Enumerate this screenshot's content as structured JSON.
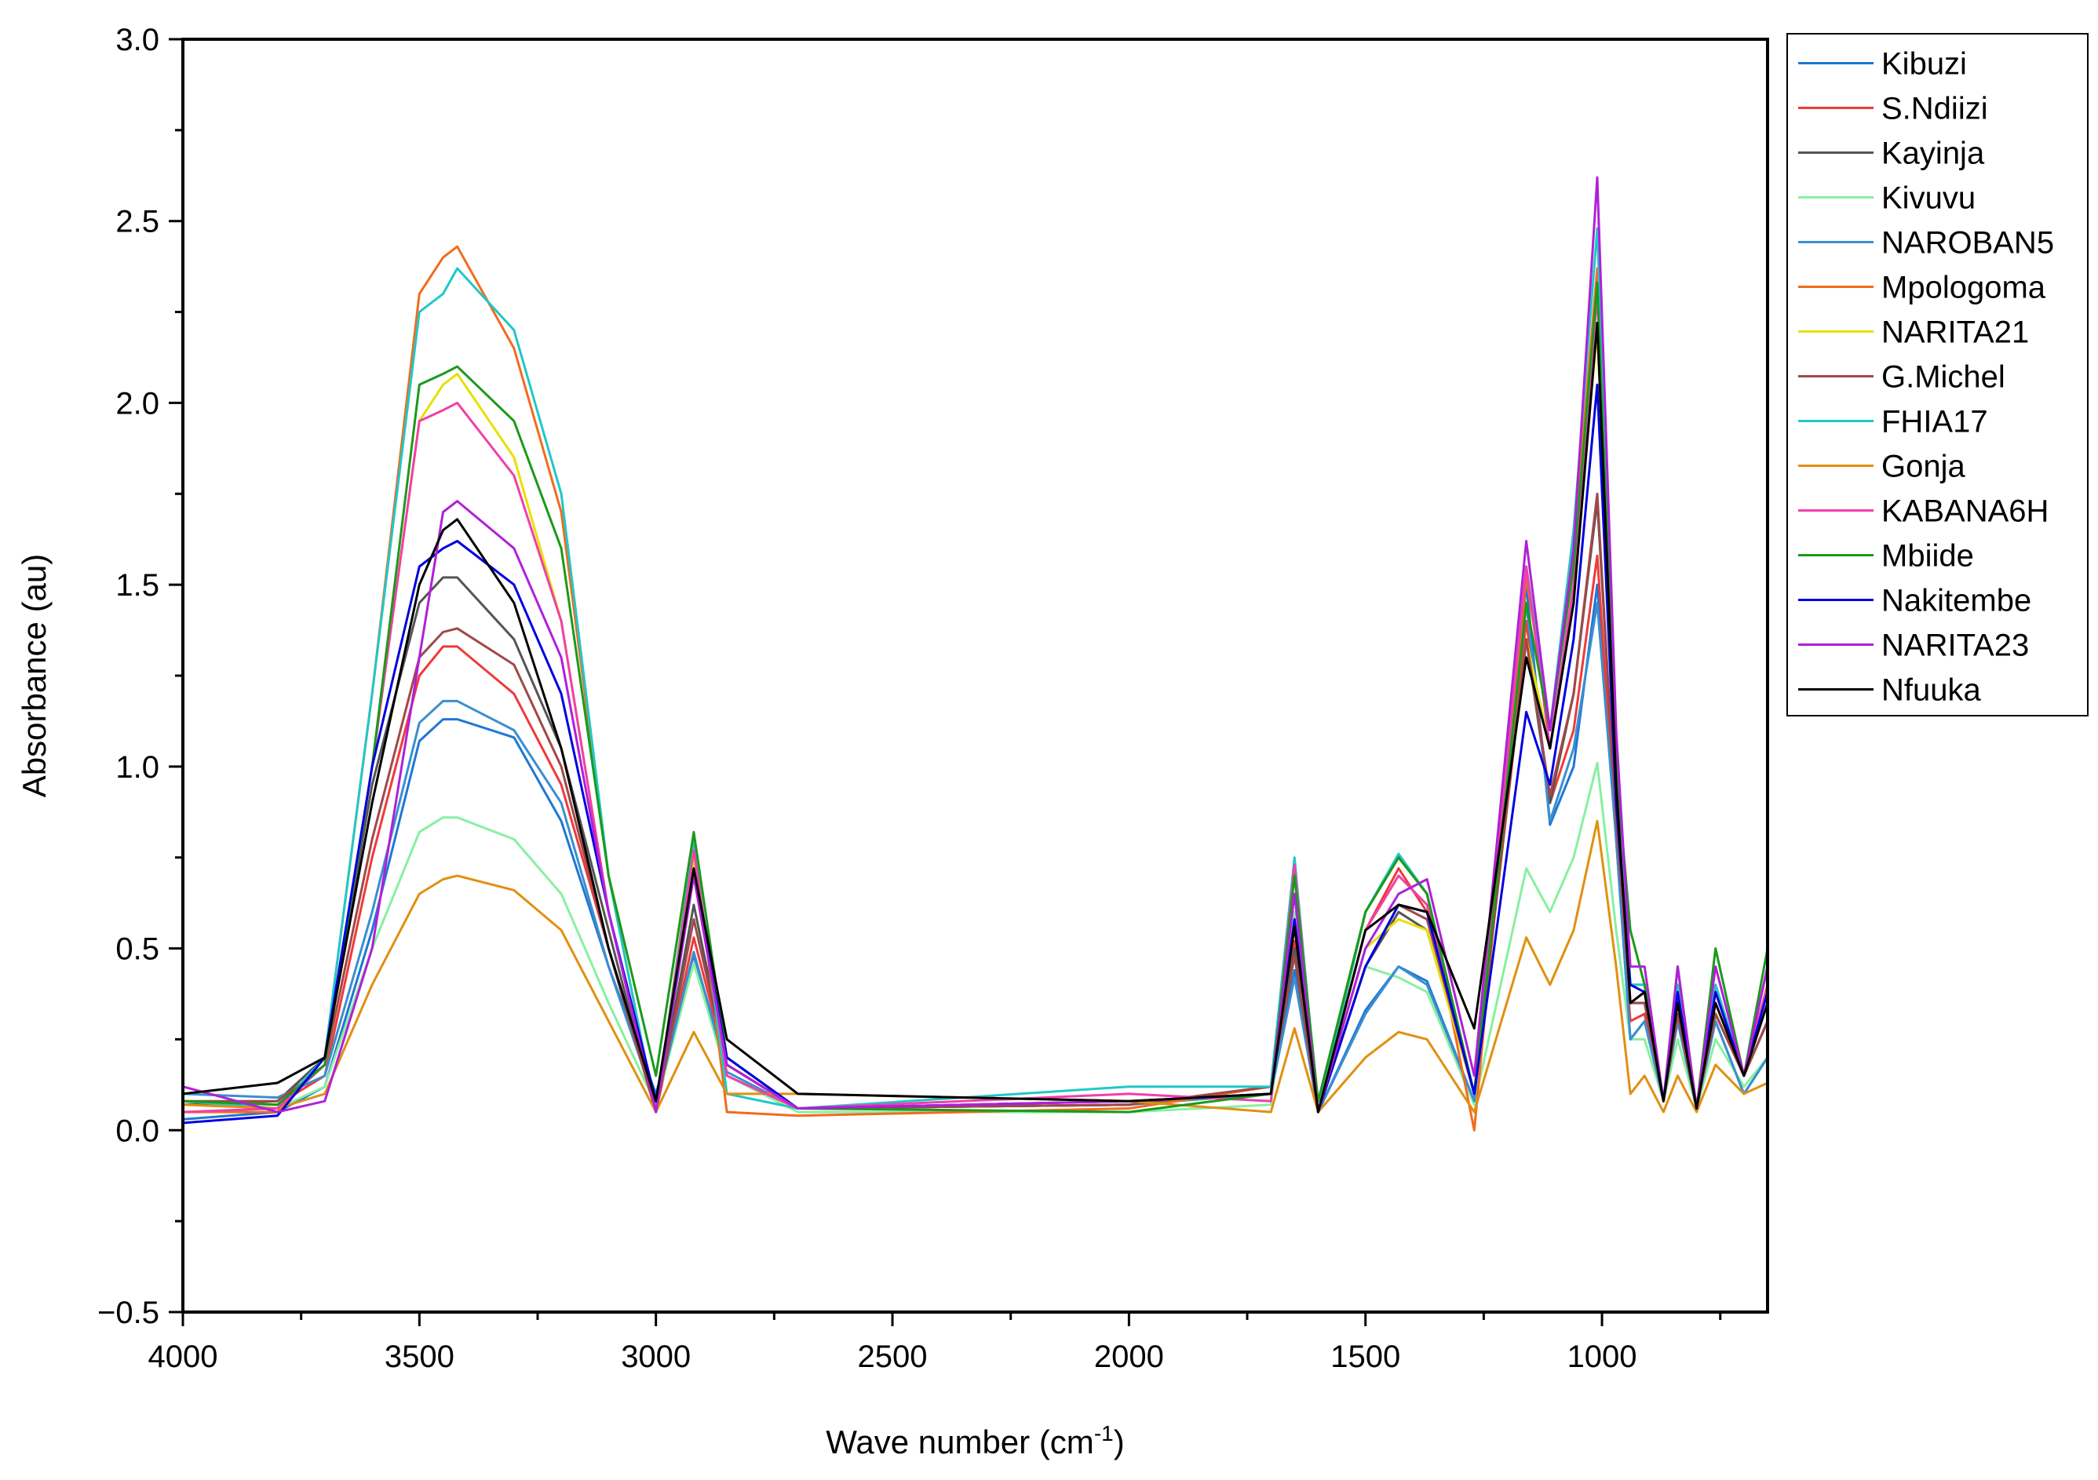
{
  "chart_data": {
    "type": "line",
    "title": "",
    "xlabel": "Wave number (cm",
    "xlabel_sup": "-1",
    "xlabel_end": ")",
    "ylabel": "Absorbance (au)",
    "xlim": [
      4000,
      650
    ],
    "ylim": [
      -0.5,
      3.0
    ],
    "x_reversed": true,
    "grid": false,
    "legend_position": "right",
    "x_ticks": [
      4000,
      3500,
      3000,
      2500,
      2000,
      1500,
      1000
    ],
    "x_tick_labels": [
      "4000",
      "3500",
      "3000",
      "2500",
      "2000",
      "1500",
      "1000"
    ],
    "y_ticks": [
      -0.5,
      0.0,
      0.5,
      1.0,
      1.5,
      2.0,
      2.5,
      3.0
    ],
    "y_tick_labels": [
      "−0.5",
      "0.0",
      "0.5",
      "1.0",
      "1.5",
      "2.0",
      "2.5",
      "3.0"
    ],
    "x": [
      4000,
      3800,
      3700,
      3600,
      3500,
      3450,
      3420,
      3300,
      3200,
      3100,
      3000,
      2920,
      2850,
      2700,
      2000,
      1700,
      1650,
      1600,
      1500,
      1430,
      1370,
      1270,
      1160,
      1110,
      1060,
      1010,
      970,
      940,
      910,
      870,
      840,
      800,
      760,
      700,
      650
    ],
    "series": [
      {
        "name": "Kibuzi",
        "color": "#1f77d4",
        "values": [
          0.03,
          0.05,
          0.12,
          0.55,
          1.07,
          1.13,
          1.13,
          1.08,
          0.85,
          0.45,
          0.1,
          0.48,
          0.18,
          0.06,
          0.07,
          0.12,
          0.44,
          0.05,
          0.33,
          0.45,
          0.41,
          0.08,
          1.5,
          0.84,
          1.0,
          1.5,
          0.8,
          0.25,
          0.3,
          0.08,
          0.3,
          0.06,
          0.3,
          0.1,
          0.2
        ]
      },
      {
        "name": "S.Ndiizi",
        "color": "#f03a3a",
        "values": [
          0.08,
          0.07,
          0.15,
          0.75,
          1.25,
          1.33,
          1.33,
          1.2,
          0.95,
          0.5,
          0.05,
          0.53,
          0.18,
          0.06,
          0.07,
          0.12,
          0.52,
          0.05,
          0.55,
          0.72,
          0.6,
          0.1,
          1.4,
          0.9,
          1.1,
          1.58,
          0.8,
          0.3,
          0.32,
          0.08,
          0.3,
          0.06,
          0.32,
          0.15,
          0.3
        ]
      },
      {
        "name": "Kayinja",
        "color": "#555555",
        "values": [
          0.07,
          0.08,
          0.2,
          0.95,
          1.45,
          1.52,
          1.52,
          1.35,
          1.05,
          0.55,
          0.05,
          0.62,
          0.18,
          0.06,
          0.07,
          0.12,
          0.5,
          0.05,
          0.45,
          0.6,
          0.55,
          0.1,
          1.35,
          0.9,
          1.2,
          1.73,
          0.85,
          0.35,
          0.35,
          0.08,
          0.32,
          0.06,
          0.32,
          0.15,
          0.3
        ]
      },
      {
        "name": "Kivuvu",
        "color": "#88f0a0",
        "values": [
          0.05,
          0.06,
          0.12,
          0.5,
          0.82,
          0.86,
          0.86,
          0.8,
          0.65,
          0.35,
          0.07,
          0.46,
          0.15,
          0.05,
          0.05,
          0.07,
          0.6,
          0.05,
          0.45,
          0.42,
          0.38,
          0.07,
          0.72,
          0.6,
          0.75,
          1.01,
          0.55,
          0.25,
          0.25,
          0.08,
          0.25,
          0.06,
          0.25,
          0.12,
          0.2
        ]
      },
      {
        "name": "NAROBAN5",
        "color": "#3a8fd0",
        "values": [
          0.1,
          0.09,
          0.15,
          0.6,
          1.12,
          1.18,
          1.18,
          1.1,
          0.9,
          0.45,
          0.07,
          0.49,
          0.16,
          0.06,
          0.07,
          0.1,
          0.42,
          0.05,
          0.32,
          0.45,
          0.4,
          0.08,
          1.45,
          0.85,
          1.05,
          1.45,
          0.8,
          0.25,
          0.3,
          0.08,
          0.3,
          0.06,
          0.3,
          0.1,
          0.2
        ]
      },
      {
        "name": "Mpologoma",
        "color": "#f26b1d",
        "values": [
          0.05,
          0.05,
          0.2,
          1.2,
          2.3,
          2.4,
          2.43,
          2.15,
          1.7,
          0.7,
          0.05,
          0.8,
          0.05,
          0.04,
          0.06,
          0.12,
          0.74,
          0.05,
          0.6,
          0.75,
          0.65,
          0.0,
          1.52,
          1.1,
          1.6,
          2.37,
          1.0,
          0.4,
          0.4,
          0.08,
          0.4,
          0.06,
          0.4,
          0.15,
          0.45
        ]
      },
      {
        "name": "NARITA21",
        "color": "#e8e000",
        "values": [
          0.08,
          0.07,
          0.18,
          1.0,
          1.95,
          2.05,
          2.08,
          1.85,
          1.4,
          0.6,
          0.05,
          0.75,
          0.18,
          0.06,
          0.08,
          0.1,
          0.72,
          0.05,
          0.5,
          0.58,
          0.55,
          0.1,
          1.35,
          1.05,
          1.5,
          2.2,
          0.95,
          0.35,
          0.38,
          0.08,
          0.38,
          0.06,
          0.38,
          0.15,
          0.4
        ]
      },
      {
        "name": "G.Michel",
        "color": "#a04848",
        "values": [
          0.08,
          0.08,
          0.18,
          0.8,
          1.3,
          1.37,
          1.38,
          1.28,
          1.0,
          0.5,
          0.05,
          0.58,
          0.18,
          0.06,
          0.07,
          0.12,
          0.48,
          0.05,
          0.45,
          0.62,
          0.58,
          0.1,
          1.35,
          0.92,
          1.2,
          1.75,
          0.85,
          0.35,
          0.35,
          0.08,
          0.32,
          0.06,
          0.32,
          0.15,
          0.3
        ]
      },
      {
        "name": "FHIA17",
        "color": "#20c8c8",
        "values": [
          0.08,
          0.06,
          0.2,
          1.2,
          2.25,
          2.3,
          2.37,
          2.2,
          1.75,
          0.7,
          0.05,
          0.79,
          0.1,
          0.06,
          0.12,
          0.12,
          0.75,
          0.05,
          0.6,
          0.76,
          0.65,
          0.1,
          1.55,
          1.1,
          1.65,
          2.48,
          1.0,
          0.4,
          0.4,
          0.08,
          0.4,
          0.06,
          0.4,
          0.15,
          0.4
        ]
      },
      {
        "name": "Gonja",
        "color": "#e09010",
        "values": [
          0.07,
          0.06,
          0.1,
          0.4,
          0.65,
          0.69,
          0.7,
          0.66,
          0.55,
          0.3,
          0.05,
          0.27,
          0.1,
          0.1,
          0.08,
          0.05,
          0.28,
          0.05,
          0.2,
          0.27,
          0.25,
          0.05,
          0.53,
          0.4,
          0.55,
          0.85,
          0.45,
          0.1,
          0.15,
          0.05,
          0.15,
          0.05,
          0.18,
          0.1,
          0.13
        ]
      },
      {
        "name": "KABANA6H",
        "color": "#f040a8",
        "values": [
          0.05,
          0.06,
          0.18,
          1.0,
          1.95,
          1.98,
          2.0,
          1.8,
          1.4,
          0.6,
          0.05,
          0.77,
          0.15,
          0.06,
          0.1,
          0.08,
          0.73,
          0.05,
          0.55,
          0.7,
          0.62,
          0.1,
          1.55,
          1.05,
          1.5,
          2.3,
          0.95,
          0.35,
          0.38,
          0.08,
          0.38,
          0.06,
          0.38,
          0.15,
          0.4
        ]
      },
      {
        "name": "Mbiide",
        "color": "#1a9a1a",
        "values": [
          0.08,
          0.07,
          0.18,
          1.0,
          2.05,
          2.08,
          2.1,
          1.95,
          1.6,
          0.7,
          0.15,
          0.82,
          0.2,
          0.06,
          0.05,
          0.1,
          0.7,
          0.08,
          0.6,
          0.75,
          0.65,
          0.1,
          1.45,
          1.1,
          1.55,
          2.33,
          1.0,
          0.55,
          0.4,
          0.08,
          0.45,
          0.06,
          0.5,
          0.15,
          0.5
        ]
      },
      {
        "name": "Nakitembe",
        "color": "#0000e0",
        "values": [
          0.02,
          0.04,
          0.2,
          1.0,
          1.55,
          1.6,
          1.62,
          1.5,
          1.2,
          0.6,
          0.08,
          0.7,
          0.2,
          0.06,
          0.08,
          0.1,
          0.58,
          0.05,
          0.45,
          0.62,
          0.6,
          0.1,
          1.15,
          0.95,
          1.35,
          2.05,
          0.9,
          0.4,
          0.38,
          0.08,
          0.38,
          0.06,
          0.38,
          0.15,
          0.38
        ]
      },
      {
        "name": "NARITA23",
        "color": "#b020d8",
        "values": [
          0.12,
          0.05,
          0.08,
          0.5,
          1.3,
          1.7,
          1.73,
          1.6,
          1.3,
          0.6,
          0.05,
          0.7,
          0.18,
          0.06,
          0.08,
          0.1,
          0.65,
          0.05,
          0.5,
          0.65,
          0.69,
          0.15,
          1.62,
          1.1,
          1.6,
          2.62,
          1.1,
          0.45,
          0.45,
          0.08,
          0.45,
          0.06,
          0.45,
          0.15,
          0.45
        ]
      },
      {
        "name": "Nfuuka",
        "color": "#000000",
        "values": [
          0.1,
          0.13,
          0.2,
          0.9,
          1.5,
          1.65,
          1.68,
          1.45,
          1.05,
          0.5,
          0.08,
          0.72,
          0.25,
          0.1,
          0.08,
          0.1,
          0.56,
          0.05,
          0.55,
          0.62,
          0.6,
          0.28,
          1.3,
          1.05,
          1.45,
          2.22,
          0.95,
          0.35,
          0.38,
          0.08,
          0.35,
          0.06,
          0.35,
          0.15,
          0.35
        ]
      }
    ]
  }
}
